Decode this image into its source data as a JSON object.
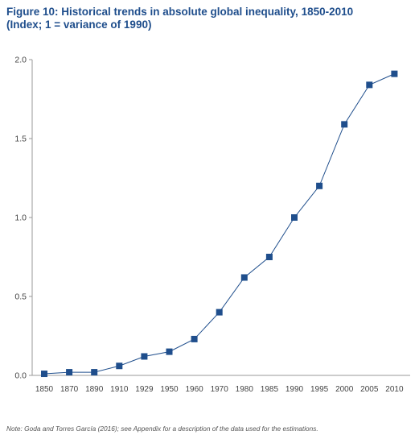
{
  "title": "Figure 10: Historical trends in absolute global inequality, 1850-2010",
  "subtitle": "(Index; 1 = variance of 1990)",
  "note": "Note: Goda and Torres García (2016); see Appendix for a description of the data used for the estimations.",
  "colors": {
    "title": "#1f4e8c",
    "series": "#1f4e8c",
    "axis": "#999999",
    "text": "#444444"
  },
  "chart_data": {
    "type": "line",
    "x": [
      "1850",
      "1870",
      "1890",
      "1910",
      "1929",
      "1950",
      "1960",
      "1970",
      "1980",
      "1985",
      "1990",
      "1995",
      "2000",
      "2005",
      "2010"
    ],
    "series": [
      {
        "values": [
          0.01,
          0.02,
          0.02,
          0.06,
          0.12,
          0.15,
          0.23,
          0.4,
          0.62,
          0.75,
          1.0,
          1.2,
          1.59,
          1.84,
          1.91
        ]
      }
    ],
    "y_ticks": [
      "0.0",
      "0.5",
      "1.0",
      "1.5",
      "2.0"
    ],
    "ylim": [
      0,
      2
    ],
    "grid": false,
    "marker": "square"
  }
}
